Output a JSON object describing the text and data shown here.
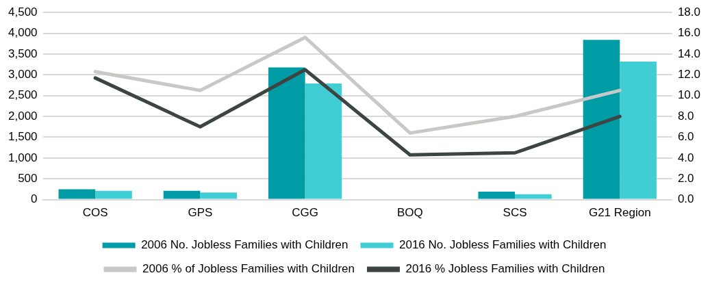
{
  "chart_data": {
    "type": "bar",
    "categories": [
      "COS",
      "GPS",
      "CGG",
      "BOQ",
      "SCS",
      "G21 Region"
    ],
    "series": [
      {
        "name": "2006 No. Jobless Families with Children",
        "color": "#009ca6",
        "values": [
          250,
          210,
          3180,
          null,
          190,
          3840
        ]
      },
      {
        "name": "2016 No. Jobless Families with Children",
        "color": "#40ced4",
        "values": [
          210,
          170,
          2790,
          null,
          130,
          3320
        ]
      },
      {
        "name": "2006 % of Jobless Families with Children",
        "type": "line",
        "axis": "y2",
        "color": "#c8c8c6",
        "values": [
          12.3,
          10.5,
          15.6,
          6.4,
          8.0,
          10.5
        ]
      },
      {
        "name": "2016 % Jobless Families with Children",
        "type": "line",
        "axis": "y2",
        "color": "#3d4543",
        "values": [
          11.7,
          7.0,
          12.5,
          4.3,
          4.5,
          8.0
        ]
      }
    ],
    "ylim": [
      0,
      4500
    ],
    "yticks": [
      {
        "value": 0,
        "label": "0"
      },
      {
        "value": 500,
        "label": "500"
      },
      {
        "value": 1000,
        "label": "1,000"
      },
      {
        "value": 1500,
        "label": "1,500"
      },
      {
        "value": 2000,
        "label": "2,000"
      },
      {
        "value": 2500,
        "label": "2,500"
      },
      {
        "value": 3000,
        "label": "3,000"
      },
      {
        "value": 3500,
        "label": "3,500"
      },
      {
        "value": 4000,
        "label": "4,000"
      },
      {
        "value": 4500,
        "label": "4,500"
      }
    ],
    "y2lim": [
      0,
      18
    ],
    "y2ticks": [
      {
        "value": 0,
        "label": "0.0"
      },
      {
        "value": 2,
        "label": "2.0"
      },
      {
        "value": 4,
        "label": "4.0"
      },
      {
        "value": 6,
        "label": "6.0"
      },
      {
        "value": 8,
        "label": "8.0"
      },
      {
        "value": 10,
        "label": "10.0"
      },
      {
        "value": 12,
        "label": "12.0"
      },
      {
        "value": 14,
        "label": "14.0"
      },
      {
        "value": 16,
        "label": "16.0"
      },
      {
        "value": 18,
        "label": "18.0"
      }
    ],
    "grid": "y",
    "legend": "bottom",
    "marker": "none"
  }
}
